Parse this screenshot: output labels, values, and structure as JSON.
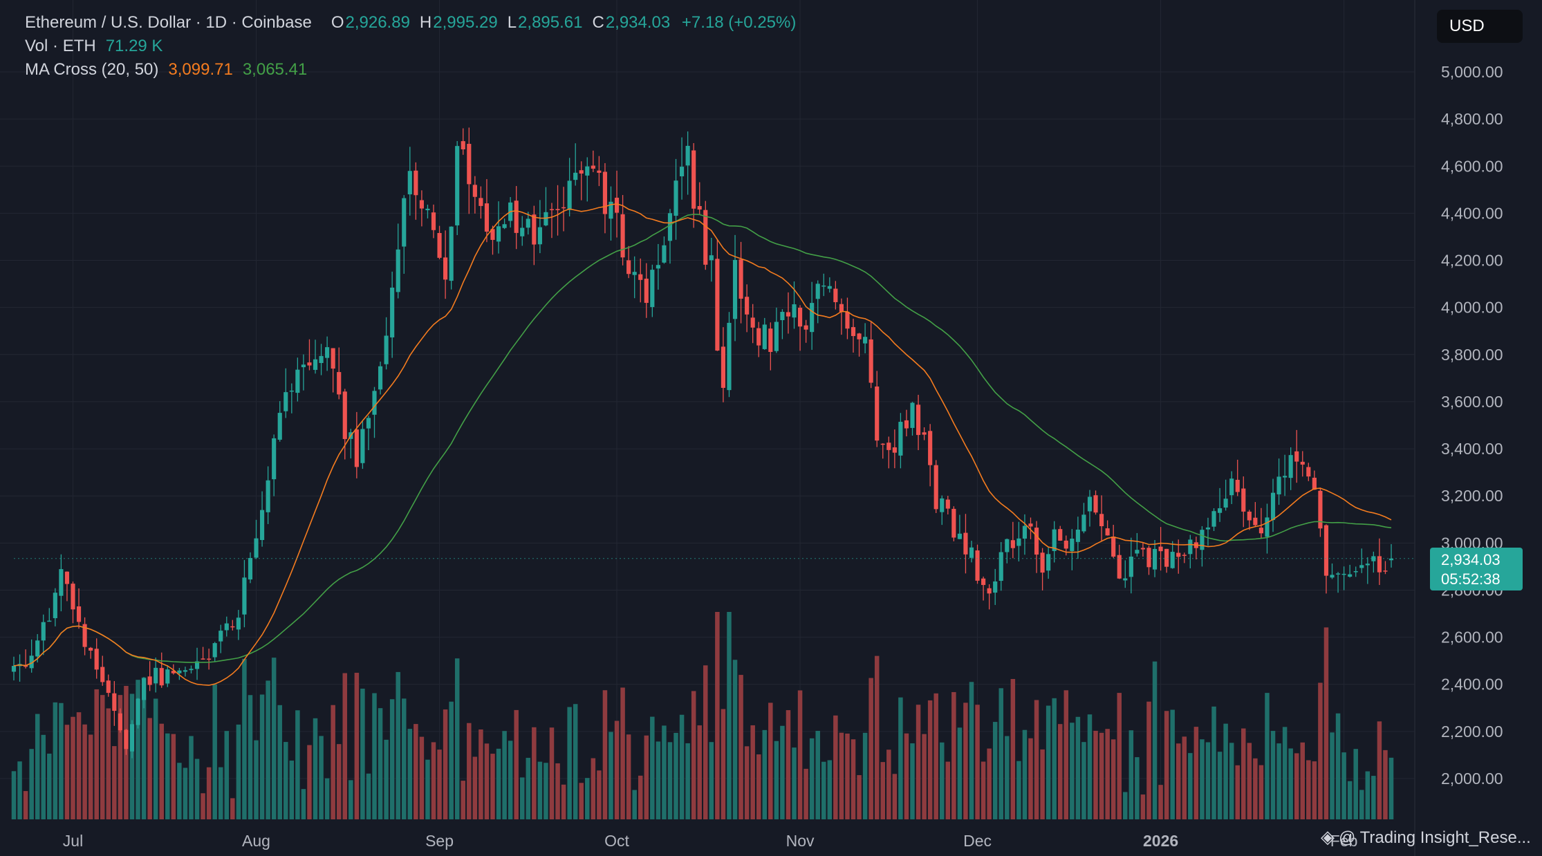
{
  "legend": {
    "symbol": "Ethereum / U.S. Dollar · 1D · Coinbase",
    "open_label": "O",
    "open": "2,926.89",
    "high_label": "H",
    "high": "2,995.29",
    "low_label": "L",
    "low": "2,895.61",
    "close_label": "C",
    "close": "2,934.03",
    "change": "+7.18 (+0.25%)",
    "vol_label": "Vol · ETH",
    "vol_value": "71.29 K",
    "ma_label": "MA Cross (20, 50)",
    "ma_fast": "3,099.71",
    "ma_slow": "3,065.41"
  },
  "currency_button": "USD",
  "last_price": {
    "price": "2,934.03",
    "countdown": "05:52:38"
  },
  "watermark": "@ Trading Insight_Rese...",
  "colors": {
    "up": "#26a69a",
    "down": "#ef5350",
    "ma_fast": "#f57c1f",
    "ma_slow": "#43a047",
    "vol_up": "#1f6f6a",
    "vol_down": "#8f3b3f"
  },
  "chart_data": {
    "type": "candlestick",
    "title": "Ethereum / U.S. Dollar · 1D · Coinbase",
    "y_ticks": [
      "5,000.00",
      "4,800.00",
      "4,600.00",
      "4,400.00",
      "4,200.00",
      "4,000.00",
      "3,800.00",
      "3,600.00",
      "3,400.00",
      "3,200.00",
      "3,000.00",
      "2,800.00",
      "2,600.00",
      "2,400.00",
      "2,200.00",
      "2,000.00"
    ],
    "y_tick_values": [
      5000,
      4800,
      4600,
      4400,
      4200,
      4000,
      3800,
      3600,
      3400,
      3200,
      3000,
      2800,
      2600,
      2400,
      2200,
      2000
    ],
    "ylim": [
      1830,
      5200
    ],
    "x_ticks": [
      {
        "label": "Jul",
        "day": 10
      },
      {
        "label": "Aug",
        "day": 41
      },
      {
        "label": "Sep",
        "day": 72
      },
      {
        "label": "Oct",
        "day": 102
      },
      {
        "label": "Nov",
        "day": 133
      },
      {
        "label": "Dec",
        "day": 163
      },
      {
        "label": "2026",
        "day": 194
      },
      {
        "label": "Feb",
        "day": 225
      }
    ],
    "n_days": 234,
    "key_closes": [
      [
        0,
        2450
      ],
      [
        4,
        2550
      ],
      [
        8,
        2850
      ],
      [
        12,
        2600
      ],
      [
        16,
        2350
      ],
      [
        19,
        2150
      ],
      [
        22,
        2420
      ],
      [
        26,
        2440
      ],
      [
        29,
        2480
      ],
      [
        34,
        2560
      ],
      [
        38,
        2720
      ],
      [
        41,
        3000
      ],
      [
        44,
        3400
      ],
      [
        47,
        3700
      ],
      [
        50,
        3750
      ],
      [
        53,
        3800
      ],
      [
        56,
        3500
      ],
      [
        58,
        3350
      ],
      [
        62,
        3700
      ],
      [
        65,
        4250
      ],
      [
        67,
        4600
      ],
      [
        69,
        4500
      ],
      [
        71,
        4250
      ],
      [
        73,
        4100
      ],
      [
        75,
        4700
      ],
      [
        78,
        4500
      ],
      [
        81,
        4350
      ],
      [
        84,
        4400
      ],
      [
        87,
        4300
      ],
      [
        90,
        4350
      ],
      [
        93,
        4450
      ],
      [
        96,
        4550
      ],
      [
        99,
        4500
      ],
      [
        102,
        4350
      ],
      [
        104,
        4200
      ],
      [
        106,
        4050
      ],
      [
        108,
        4100
      ],
      [
        110,
        4250
      ],
      [
        112,
        4500
      ],
      [
        114,
        4650
      ],
      [
        116,
        4350
      ],
      [
        118,
        4150
      ],
      [
        120,
        3600
      ],
      [
        122,
        4200
      ],
      [
        124,
        4000
      ],
      [
        126,
        3900
      ],
      [
        128,
        3850
      ],
      [
        130,
        3950
      ],
      [
        132,
        4000
      ],
      [
        134,
        3850
      ],
      [
        136,
        4100
      ],
      [
        138,
        4150
      ],
      [
        140,
        3950
      ],
      [
        142,
        3900
      ],
      [
        144,
        3850
      ],
      [
        146,
        3450
      ],
      [
        148,
        3350
      ],
      [
        150,
        3500
      ],
      [
        152,
        3550
      ],
      [
        154,
        3400
      ],
      [
        156,
        3200
      ],
      [
        158,
        3100
      ],
      [
        160,
        3050
      ],
      [
        162,
        2950
      ],
      [
        164,
        2800
      ],
      [
        166,
        2850
      ],
      [
        168,
        3000
      ],
      [
        170,
        3000
      ],
      [
        172,
        3050
      ],
      [
        174,
        2900
      ],
      [
        176,
        3100
      ],
      [
        178,
        3000
      ],
      [
        180,
        3100
      ],
      [
        182,
        3200
      ],
      [
        184,
        3050
      ],
      [
        186,
        2950
      ],
      [
        188,
        2850
      ],
      [
        190,
        2980
      ],
      [
        192,
        2900
      ],
      [
        194,
        2950
      ],
      [
        196,
        2920
      ],
      [
        198,
        2950
      ],
      [
        200,
        3000
      ],
      [
        202,
        3050
      ],
      [
        204,
        3150
      ],
      [
        206,
        3250
      ],
      [
        208,
        3100
      ],
      [
        210,
        3050
      ],
      [
        212,
        3100
      ],
      [
        214,
        3300
      ],
      [
        216,
        3320
      ],
      [
        218,
        3280
      ],
      [
        220,
        3200
      ],
      [
        222,
        2850
      ],
      [
        224,
        2880
      ],
      [
        226,
        2820
      ],
      [
        229,
        2900
      ],
      [
        233,
        2934
      ]
    ],
    "last_candle": {
      "open": 2926.89,
      "high": 2995.29,
      "low": 2895.61,
      "close": 2934.03
    },
    "ma_fast_last": 3099.71,
    "ma_slow_last": 3065.41,
    "volume_last": 71.29
  }
}
